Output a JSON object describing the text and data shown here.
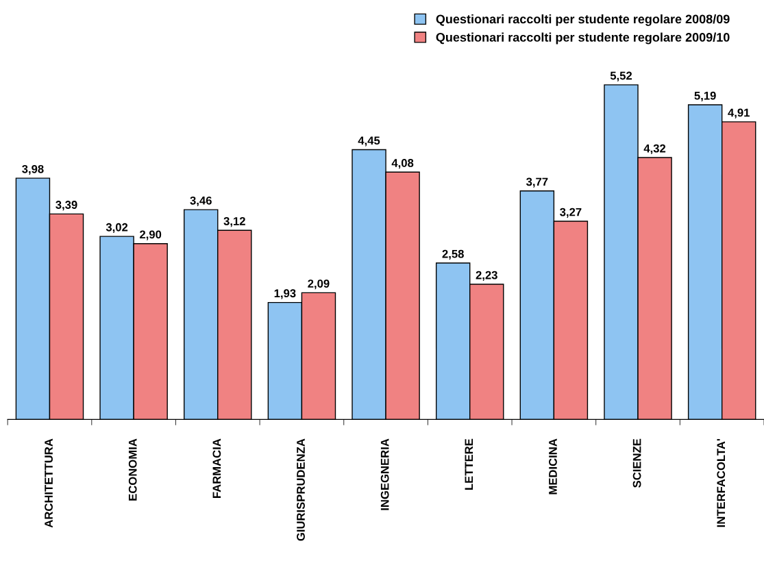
{
  "chart_data": {
    "type": "bar",
    "categories": [
      "ARCHITETTURA",
      "ECONOMIA",
      "FARMACIA",
      "GIURISPRUDENZA",
      "INGEGNERIA",
      "LETTERE",
      "MEDICINA",
      "SCIENZE",
      "INTERFACOLTA'"
    ],
    "series": [
      {
        "name": "Questionari raccolti per studente regolare 2008/09",
        "color": "#8ec4f2",
        "values": [
          3.98,
          3.02,
          3.46,
          1.93,
          4.45,
          2.58,
          3.77,
          5.52,
          5.19
        ],
        "value_labels": [
          "3,98",
          "3,02",
          "3,46",
          "1,93",
          "4,45",
          "2,58",
          "3,77",
          "5,52",
          "5,19"
        ]
      },
      {
        "name": "Questionari raccolti per studente regolare 2009/10",
        "color": "#f08282",
        "values": [
          3.39,
          2.9,
          3.12,
          2.09,
          4.08,
          2.23,
          3.27,
          4.32,
          4.91
        ],
        "value_labels": [
          "3,39",
          "2,90",
          "3,12",
          "2,09",
          "4,08",
          "2,23",
          "3,27",
          "4,32",
          "4,91"
        ]
      }
    ],
    "grid": false,
    "legend": "top right"
  }
}
